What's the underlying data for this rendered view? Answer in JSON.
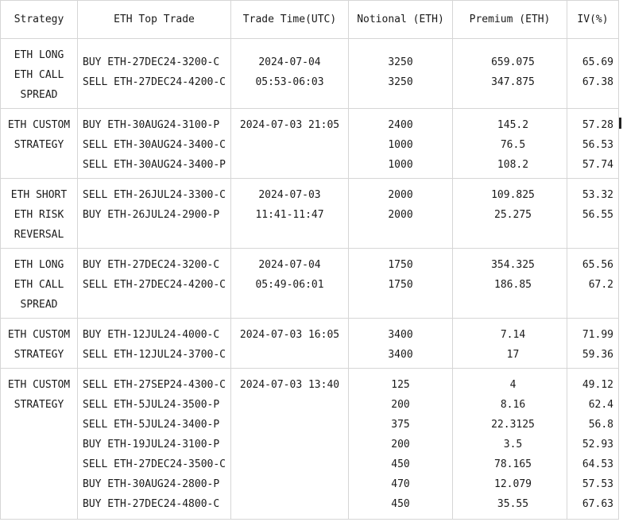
{
  "headers": {
    "strategy": "Strategy",
    "top_trade": "ETH Top Trade",
    "trade_time": "Trade Time(UTC)",
    "notional": "Notional (ETH)",
    "premium": "Premium (ETH)",
    "iv": "IV(%)"
  },
  "rows": [
    {
      "strategy": [
        "ETH LONG",
        "ETH CALL",
        "SPREAD"
      ],
      "legs": [
        "BUY ETH-27DEC24-3200-C",
        "SELL ETH-27DEC24-4200-C"
      ],
      "time": [
        "2024-07-04",
        "05:53-06:03"
      ],
      "notional": [
        "3250",
        "3250"
      ],
      "premium": [
        "659.075",
        "347.875"
      ],
      "iv": [
        "65.69",
        "67.38"
      ]
    },
    {
      "strategy": [
        "ETH CUSTOM",
        "STRATEGY"
      ],
      "legs": [
        "BUY ETH-30AUG24-3100-P",
        "SELL ETH-30AUG24-3400-C",
        "SELL ETH-30AUG24-3400-P"
      ],
      "time": [
        "2024-07-03 21:05"
      ],
      "notional": [
        "2400",
        "1000",
        "1000"
      ],
      "premium": [
        "145.2",
        "76.5",
        "108.2"
      ],
      "iv": [
        "57.28",
        "56.53",
        "57.74"
      ]
    },
    {
      "strategy": [
        "ETH SHORT",
        "ETH RISK",
        "REVERSAL"
      ],
      "legs": [
        "SELL ETH-26JUL24-3300-C",
        "BUY ETH-26JUL24-2900-P"
      ],
      "time": [
        "2024-07-03",
        "11:41-11:47"
      ],
      "notional": [
        "2000",
        "2000"
      ],
      "premium": [
        "109.825",
        "25.275"
      ],
      "iv": [
        "53.32",
        "56.55"
      ]
    },
    {
      "strategy": [
        "ETH LONG",
        "ETH CALL",
        "SPREAD"
      ],
      "legs": [
        "BUY ETH-27DEC24-3200-C",
        "SELL ETH-27DEC24-4200-C"
      ],
      "time": [
        "2024-07-04",
        "05:49-06:01"
      ],
      "notional": [
        "1750",
        "1750"
      ],
      "premium": [
        "354.325",
        "186.85"
      ],
      "iv": [
        "65.56",
        "67.2"
      ]
    },
    {
      "strategy": [
        "ETH CUSTOM",
        "STRATEGY"
      ],
      "legs": [
        "BUY ETH-12JUL24-4000-C",
        "SELL ETH-12JUL24-3700-C"
      ],
      "time": [
        "2024-07-03 16:05"
      ],
      "notional": [
        "3400",
        "3400"
      ],
      "premium": [
        "7.14",
        "17"
      ],
      "iv": [
        "71.99",
        "59.36"
      ]
    },
    {
      "strategy": [
        "ETH CUSTOM",
        "STRATEGY"
      ],
      "legs": [
        "SELL ETH-27SEP24-4300-C",
        "SELL ETH-5JUL24-3500-P",
        "SELL ETH-5JUL24-3400-P",
        "BUY ETH-19JUL24-3100-P",
        "SELL ETH-27DEC24-3500-C",
        "BUY ETH-30AUG24-2800-P",
        "BUY ETH-27DEC24-4800-C"
      ],
      "time": [
        "2024-07-03 13:40"
      ],
      "notional": [
        "125",
        "200",
        "375",
        "200",
        "450",
        "470",
        "450"
      ],
      "premium": [
        "4",
        "8.16",
        "22.3125",
        "3.5",
        "78.165",
        "12.079",
        "35.55"
      ],
      "iv": [
        "49.12",
        "62.4",
        "56.8",
        "52.93",
        "64.53",
        "57.53",
        "67.63"
      ]
    }
  ]
}
